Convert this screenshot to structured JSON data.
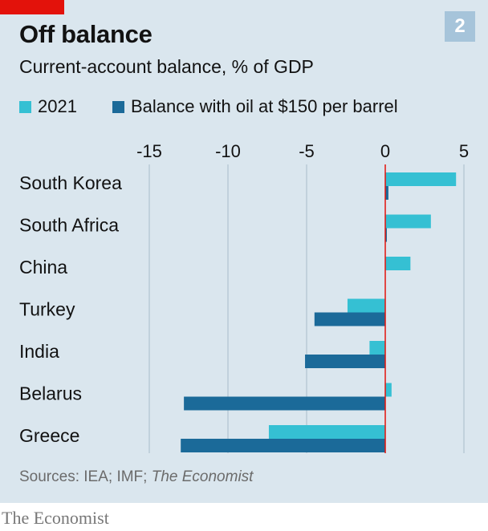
{
  "header": {
    "title": "Off balance",
    "subtitle": "Current-account balance, % of GDP",
    "chart_number": "2"
  },
  "colors": {
    "series_2021": "#35c0d3",
    "series_oil": "#1b6a99",
    "zero_line": "#e3120b",
    "grid": "#a8bcc9",
    "accent": "#e3120b"
  },
  "legend": [
    {
      "label": "2021",
      "color": "#35c0d3"
    },
    {
      "label": "Balance with oil at $150 per barrel",
      "color": "#1b6a99"
    }
  ],
  "footer": {
    "source_prefix": "Sources: IEA; IMF; ",
    "source_italic": "The Economist",
    "brand": "The Economist"
  },
  "chart_data": {
    "type": "bar",
    "orientation": "horizontal",
    "categories": [
      "South Korea",
      "South Africa",
      "China",
      "Turkey",
      "India",
      "Belarus",
      "Greece"
    ],
    "series": [
      {
        "name": "2021",
        "values": [
          4.5,
          2.9,
          1.6,
          -2.4,
          -1.0,
          0.4,
          -7.4
        ]
      },
      {
        "name": "Balance with oil at $150 per barrel",
        "values": [
          0.2,
          0.1,
          0.0,
          -4.5,
          -5.1,
          -12.8,
          -13.0
        ]
      }
    ],
    "x_ticks": [
      -15,
      -10,
      -5,
      0,
      5
    ],
    "x_tick_labels": [
      "-15",
      "-10",
      "-5",
      "0",
      "5"
    ],
    "xlim": [
      -15,
      5
    ],
    "grid": true,
    "legend_position": "top-left"
  }
}
